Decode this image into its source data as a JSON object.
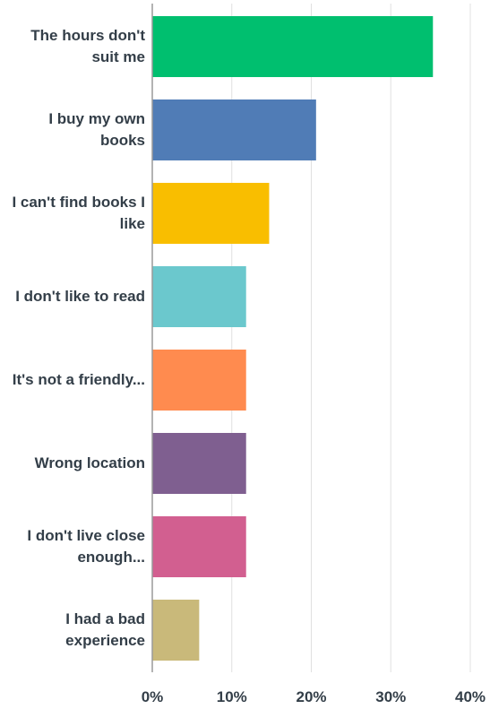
{
  "chart_data": {
    "type": "bar",
    "orientation": "horizontal",
    "categories": [
      "The hours don't suit me",
      "I buy my own books",
      "I can't find books I like",
      "I don't like to read",
      "It's not a friendly...",
      "Wrong location",
      "I don't live close enough...",
      "I had a bad experience"
    ],
    "values": [
      35.3,
      20.6,
      14.7,
      11.8,
      11.8,
      11.8,
      11.8,
      5.9
    ],
    "colors": [
      "#00bf6f",
      "#507cb6",
      "#f9be00",
      "#6bc8cd",
      "#ff8b4f",
      "#7f5f90",
      "#d25f90",
      "#c9b97a"
    ],
    "xlim": [
      0,
      40
    ],
    "xticks": [
      {
        "value": 0,
        "label": "0%"
      },
      {
        "value": 10,
        "label": "10%"
      },
      {
        "value": 20,
        "label": "20%"
      },
      {
        "value": 30,
        "label": "30%"
      },
      {
        "value": 40,
        "label": "40%"
      }
    ],
    "grid": true
  }
}
